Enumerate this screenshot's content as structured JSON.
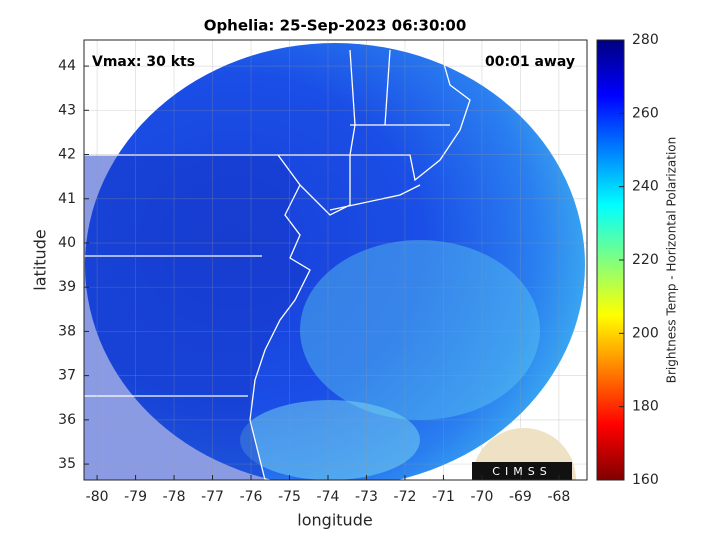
{
  "chart_data": {
    "type": "map",
    "title": "Ophelia: 25-Sep-2023 06:30:00",
    "xlabel": "longitude",
    "ylabel": "latitude",
    "annotations": [
      "Vmax: 30 kts",
      "00:01 away"
    ],
    "xlim": [
      -80.34,
      -67.27
    ],
    "xticks": [
      -80,
      -79,
      -78,
      -77,
      -76,
      -75,
      -74,
      -73,
      -72,
      -71,
      -70,
      -69,
      -68
    ],
    "ylim": [
      34.64,
      44.59
    ],
    "yticks": [
      35,
      36,
      37,
      38,
      39,
      40,
      41,
      42,
      43,
      44
    ],
    "grid": true,
    "colorbar": {
      "label": "Brightness Temp - Horizontal Polarization",
      "lim": [
        160,
        280
      ],
      "ticks": [
        160,
        180,
        200,
        220,
        240,
        260,
        280
      ]
    },
    "logo": "CIMSS"
  }
}
